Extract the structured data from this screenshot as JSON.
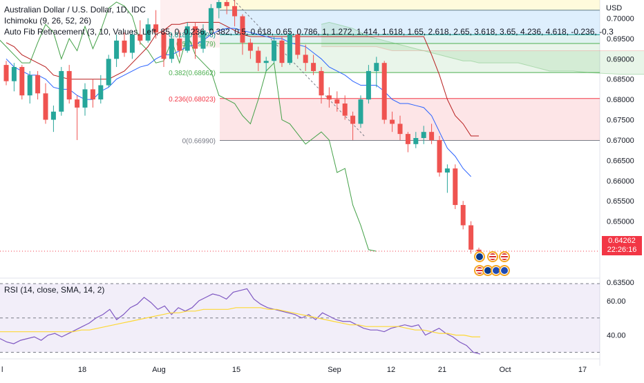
{
  "header": {
    "symbol_line": "Australian Dollar / U.S. Dollar, 1D, IDC",
    "ichimoku_line": "Ichimoku (9, 26, 52, 26)",
    "fib_line": "Auto Fib Retracement (3, 10, Values, Left, 85, 0, 0.236, 0.382, 0.5, 0.618, 0.65, 0.786, 1, 1.272, 1.414, 1.618, 1.65, 2.618, 2.65, 3.618, 3.65, 4.236, 4.618, -0.236, -0.3",
    "currency": "USD"
  },
  "price_tag": {
    "price": "0.64262",
    "countdown": "22:26:16"
  },
  "rsi_legend": "RSI (14, close, SMA, 14, 2)",
  "colors": {
    "up": "#26a69a",
    "down": "#ef5350",
    "conversion": "#2962ff",
    "base": "#b71c1c",
    "lagging": "#43a047",
    "rsi": "#7e57c2",
    "rsi_ma": "#fdd835"
  },
  "chart_data": {
    "type": "candlestick",
    "title": "Australian Dollar / U.S. Dollar, 1D, IDC",
    "y_axis": {
      "ticks": [
        "0.70000",
        "0.69500",
        "0.69000",
        "0.68500",
        "0.68000",
        "0.67500",
        "0.67000",
        "0.66500",
        "0.66000",
        "0.65500",
        "0.65000",
        "0.64500",
        "0.63500"
      ],
      "range": [
        0.6365,
        0.7045
      ]
    },
    "x_axis": {
      "ticks": [
        "l",
        "18",
        "Aug",
        "8",
        "15",
        "Sep",
        "12",
        "21",
        "Oct",
        "17"
      ]
    },
    "fib_labels": [
      {
        "label": "0.618(0.69596)",
        "value": 0.69596
      },
      {
        "label": "0.5(0.69379)",
        "value": 0.69379
      },
      {
        "label": "0.382(0.68662)",
        "value": 0.68662
      },
      {
        "label": "0.236(0.68023)",
        "value": 0.68023
      },
      {
        "label": "0(0.66990)",
        "value": 0.6699
      }
    ],
    "last_price": 0.64262,
    "candles": [
      {
        "o": 0.6885,
        "h": 0.6895,
        "l": 0.6835,
        "c": 0.6845
      },
      {
        "o": 0.6845,
        "h": 0.689,
        "l": 0.682,
        "c": 0.688
      },
      {
        "o": 0.688,
        "h": 0.6885,
        "l": 0.68,
        "c": 0.681
      },
      {
        "o": 0.681,
        "h": 0.687,
        "l": 0.679,
        "c": 0.686
      },
      {
        "o": 0.686,
        "h": 0.687,
        "l": 0.68,
        "c": 0.6815
      },
      {
        "o": 0.6815,
        "h": 0.684,
        "l": 0.674,
        "c": 0.675
      },
      {
        "o": 0.675,
        "h": 0.6785,
        "l": 0.672,
        "c": 0.677
      },
      {
        "o": 0.677,
        "h": 0.688,
        "l": 0.676,
        "c": 0.687
      },
      {
        "o": 0.687,
        "h": 0.6885,
        "l": 0.679,
        "c": 0.68
      },
      {
        "o": 0.68,
        "h": 0.681,
        "l": 0.67,
        "c": 0.678
      },
      {
        "o": 0.678,
        "h": 0.684,
        "l": 0.676,
        "c": 0.6825
      },
      {
        "o": 0.6825,
        "h": 0.685,
        "l": 0.678,
        "c": 0.68
      },
      {
        "o": 0.68,
        "h": 0.686,
        "l": 0.679,
        "c": 0.6835
      },
      {
        "o": 0.6835,
        "h": 0.691,
        "l": 0.683,
        "c": 0.69
      },
      {
        "o": 0.69,
        "h": 0.696,
        "l": 0.688,
        "c": 0.6945
      },
      {
        "o": 0.6945,
        "h": 0.6965,
        "l": 0.6905,
        "c": 0.6915
      },
      {
        "o": 0.6915,
        "h": 0.697,
        "l": 0.69,
        "c": 0.696
      },
      {
        "o": 0.696,
        "h": 0.6995,
        "l": 0.6935,
        "c": 0.6945
      },
      {
        "o": 0.6945,
        "h": 0.7,
        "l": 0.694,
        "c": 0.6985
      },
      {
        "o": 0.6985,
        "h": 0.702,
        "l": 0.695,
        "c": 0.6965
      },
      {
        "o": 0.6965,
        "h": 0.6975,
        "l": 0.688,
        "c": 0.69
      },
      {
        "o": 0.69,
        "h": 0.696,
        "l": 0.689,
        "c": 0.695
      },
      {
        "o": 0.695,
        "h": 0.697,
        "l": 0.6905,
        "c": 0.692
      },
      {
        "o": 0.692,
        "h": 0.699,
        "l": 0.6915,
        "c": 0.698
      },
      {
        "o": 0.698,
        "h": 0.699,
        "l": 0.69,
        "c": 0.6925
      },
      {
        "o": 0.6925,
        "h": 0.6985,
        "l": 0.6915,
        "c": 0.697
      },
      {
        "o": 0.697,
        "h": 0.7035,
        "l": 0.696,
        "c": 0.7025
      },
      {
        "o": 0.7025,
        "h": 0.7045,
        "l": 0.7,
        "c": 0.704
      },
      {
        "o": 0.704,
        "h": 0.7045,
        "l": 0.701,
        "c": 0.703
      },
      {
        "o": 0.703,
        "h": 0.7045,
        "l": 0.698,
        "c": 0.7005
      },
      {
        "o": 0.7005,
        "h": 0.701,
        "l": 0.691,
        "c": 0.694
      },
      {
        "o": 0.694,
        "h": 0.695,
        "l": 0.69,
        "c": 0.692
      },
      {
        "o": 0.692,
        "h": 0.693,
        "l": 0.687,
        "c": 0.689
      },
      {
        "o": 0.689,
        "h": 0.6905,
        "l": 0.687,
        "c": 0.6895
      },
      {
        "o": 0.6895,
        "h": 0.6955,
        "l": 0.689,
        "c": 0.6945
      },
      {
        "o": 0.6945,
        "h": 0.6955,
        "l": 0.688,
        "c": 0.689
      },
      {
        "o": 0.689,
        "h": 0.697,
        "l": 0.6885,
        "c": 0.696
      },
      {
        "o": 0.696,
        "h": 0.697,
        "l": 0.69,
        "c": 0.691
      },
      {
        "o": 0.691,
        "h": 0.6935,
        "l": 0.687,
        "c": 0.689
      },
      {
        "o": 0.689,
        "h": 0.691,
        "l": 0.686,
        "c": 0.687
      },
      {
        "o": 0.687,
        "h": 0.688,
        "l": 0.679,
        "c": 0.681
      },
      {
        "o": 0.681,
        "h": 0.683,
        "l": 0.678,
        "c": 0.68
      },
      {
        "o": 0.68,
        "h": 0.682,
        "l": 0.677,
        "c": 0.679
      },
      {
        "o": 0.679,
        "h": 0.681,
        "l": 0.675,
        "c": 0.676
      },
      {
        "o": 0.676,
        "h": 0.677,
        "l": 0.67,
        "c": 0.674
      },
      {
        "o": 0.674,
        "h": 0.681,
        "l": 0.673,
        "c": 0.68
      },
      {
        "o": 0.68,
        "h": 0.6885,
        "l": 0.679,
        "c": 0.687
      },
      {
        "o": 0.687,
        "h": 0.6905,
        "l": 0.683,
        "c": 0.689
      },
      {
        "o": 0.689,
        "h": 0.6895,
        "l": 0.674,
        "c": 0.675
      },
      {
        "o": 0.675,
        "h": 0.677,
        "l": 0.672,
        "c": 0.674
      },
      {
        "o": 0.674,
        "h": 0.676,
        "l": 0.67,
        "c": 0.6715
      },
      {
        "o": 0.6715,
        "h": 0.672,
        "l": 0.667,
        "c": 0.669
      },
      {
        "o": 0.669,
        "h": 0.672,
        "l": 0.668,
        "c": 0.6705
      },
      {
        "o": 0.6705,
        "h": 0.6735,
        "l": 0.669,
        "c": 0.672
      },
      {
        "o": 0.672,
        "h": 0.674,
        "l": 0.669,
        "c": 0.67
      },
      {
        "o": 0.67,
        "h": 0.671,
        "l": 0.661,
        "c": 0.662
      },
      {
        "o": 0.662,
        "h": 0.664,
        "l": 0.657,
        "c": 0.663
      },
      {
        "o": 0.663,
        "h": 0.664,
        "l": 0.653,
        "c": 0.654
      },
      {
        "o": 0.654,
        "h": 0.655,
        "l": 0.648,
        "c": 0.649
      },
      {
        "o": 0.649,
        "h": 0.65,
        "l": 0.642,
        "c": 0.643
      },
      {
        "o": 0.643,
        "h": 0.6435,
        "l": 0.6421,
        "c": 0.6426
      }
    ],
    "ichimoku": {
      "conversion": [
        0.69,
        0.688,
        0.687,
        0.686,
        0.686,
        0.685,
        0.683,
        0.6825,
        0.6825,
        0.681,
        0.68,
        0.68,
        0.682,
        0.683,
        0.685,
        0.686,
        0.687,
        0.688,
        0.6885,
        0.69,
        0.691,
        0.691,
        0.692,
        0.693,
        0.6935,
        0.6945,
        0.696,
        0.697,
        0.6975,
        0.6975,
        0.697,
        0.6965,
        0.696,
        0.6955,
        0.695,
        0.695,
        0.694,
        0.6935,
        0.693,
        0.6915,
        0.69,
        0.688,
        0.687,
        0.686,
        0.6845,
        0.6835,
        0.6835,
        0.6835,
        0.682,
        0.68,
        0.679,
        0.679,
        0.6785,
        0.678,
        0.676,
        0.672,
        0.668,
        0.666,
        0.663,
        0.661
      ],
      "base": [
        0.694,
        0.693,
        0.691,
        0.69,
        0.689,
        0.688,
        0.686,
        0.6855,
        0.685,
        0.685,
        0.685,
        0.685,
        0.685,
        0.685,
        0.686,
        0.687,
        0.689,
        0.691,
        0.693,
        0.696,
        0.697,
        0.6985,
        0.6985,
        0.699,
        0.699,
        0.699,
        0.699,
        0.699,
        0.698,
        0.697,
        0.696,
        0.6955,
        0.6955,
        0.6955,
        0.6955,
        0.6955,
        0.6955,
        0.6955,
        0.6955,
        0.6955,
        0.6955,
        0.6955,
        0.6955,
        0.6955,
        0.6955,
        0.6955,
        0.6955,
        0.6955,
        0.6955,
        0.6955,
        0.6955,
        0.6955,
        0.6955,
        0.6955,
        0.691,
        0.686,
        0.68,
        0.676,
        0.674,
        0.671,
        0.671
      ],
      "lagging": [
        0.698,
        0.695,
        0.693,
        0.691,
        0.689,
        0.689,
        0.694,
        0.6985,
        0.6965,
        0.69,
        0.695,
        0.692,
        0.698,
        0.6925,
        0.697,
        0.7025,
        0.704,
        0.703,
        0.7005,
        0.694,
        0.692,
        0.689,
        0.6895,
        0.6945,
        0.689,
        0.696,
        0.691,
        0.689,
        0.687,
        0.681,
        0.68,
        0.679,
        0.676,
        0.674,
        0.68,
        0.687,
        0.689,
        0.675,
        0.674,
        0.6715,
        0.669,
        0.6705,
        0.672,
        0.67,
        0.662,
        0.663,
        0.654,
        0.649,
        0.643,
        0.6426
      ],
      "spanA": [
        0.6985,
        0.699,
        0.6985,
        0.698,
        0.6975,
        0.6965,
        0.6955,
        0.695,
        0.6945,
        0.694,
        0.6935,
        0.693,
        0.6925,
        0.692,
        0.6915,
        0.691,
        0.6905,
        0.69,
        0.6895,
        0.6895,
        0.689,
        0.689,
        0.689,
        0.689,
        0.689,
        0.689,
        0.6885,
        0.688,
        0.6875,
        0.687,
        0.687,
        0.687,
        0.687,
        0.6868,
        0.6866,
        0.6865,
        0.6864,
        0.6863,
        0.6862,
        0.6862,
        0.6862,
        0.6862
      ],
      "spanB": [
        0.693,
        0.693,
        0.693,
        0.693,
        0.693,
        0.693,
        0.693,
        0.693,
        0.6925,
        0.692,
        0.692,
        0.692,
        0.692,
        0.692,
        0.692,
        0.692,
        0.692,
        0.692,
        0.692,
        0.692,
        0.692,
        0.692,
        0.692,
        0.692,
        0.692,
        0.692,
        0.692,
        0.692,
        0.692,
        0.692,
        0.692,
        0.692,
        0.692,
        0.692,
        0.692,
        0.692,
        0.692,
        0.692,
        0.692,
        0.692,
        0.692,
        0.692
      ]
    },
    "rsi": {
      "ticks": [
        "60.00",
        "40.00"
      ],
      "range": [
        27,
        72
      ],
      "values": [
        38,
        36,
        35,
        37,
        38,
        39,
        37,
        40,
        41,
        39,
        41,
        43,
        45,
        47,
        50,
        52,
        55,
        49,
        52,
        56,
        58,
        62,
        59,
        55,
        57,
        52,
        56,
        54,
        56,
        60,
        62,
        64,
        63,
        61,
        65,
        66,
        67,
        61,
        58,
        56,
        55,
        54,
        53,
        52,
        50,
        52,
        49,
        53,
        51,
        49,
        48,
        48,
        46,
        44,
        43,
        43,
        42,
        44,
        45,
        46,
        45,
        46,
        40,
        42,
        44,
        41,
        39,
        36,
        34,
        30,
        29
      ],
      "ma": [
        42,
        42,
        42,
        42,
        42,
        42,
        42,
        42,
        42,
        42,
        43,
        43,
        44,
        45,
        46,
        47,
        48,
        49,
        50,
        51,
        52,
        53,
        53,
        54,
        54,
        55,
        55,
        55,
        55,
        56,
        56,
        56,
        56,
        55,
        55,
        54,
        53,
        52,
        51,
        50,
        49,
        48,
        47,
        46,
        46,
        45,
        45,
        45,
        45,
        45,
        44,
        43,
        43,
        42,
        41,
        41,
        40,
        40,
        39,
        39
      ]
    }
  }
}
